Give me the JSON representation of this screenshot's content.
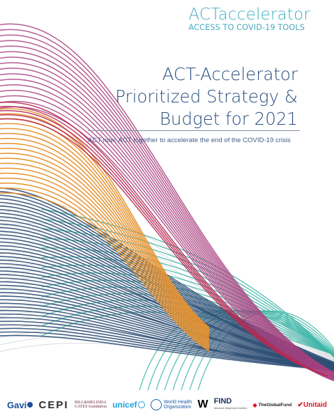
{
  "brand": {
    "main_part1": "ACT",
    "main_part2": "accelerator",
    "sub": "ACCESS TO COVID-19 TOOLS"
  },
  "title_lines": [
    "ACT-Accelerator",
    "Prioritized Strategy &",
    "Budget for 2021"
  ],
  "subtitle": "ACT now, ACT together to accelerate the end of the COVID-19 crisis",
  "colors": {
    "magenta": "#a8407f",
    "crimson": "#b82a55",
    "orange": "#e6922f",
    "teal": "#3fb6a8",
    "navy": "#2f4f75",
    "grey": "#c7cdd3",
    "title": "#2b4f7e",
    "brand": "#4aa8c3"
  },
  "logos": {
    "gavi": "Gavi",
    "cepi": "CEPI",
    "gates_line1": "BILL&MELINDA",
    "gates_line2": "GATES foundation",
    "unicef": "unicef",
    "who_line1": "World Health",
    "who_line2": "Organization",
    "w": "W",
    "find": "FIND",
    "find_tag": "because diagnosis matters",
    "global_fund": "TheGlobalFund",
    "unitaid": "Unitaid"
  }
}
